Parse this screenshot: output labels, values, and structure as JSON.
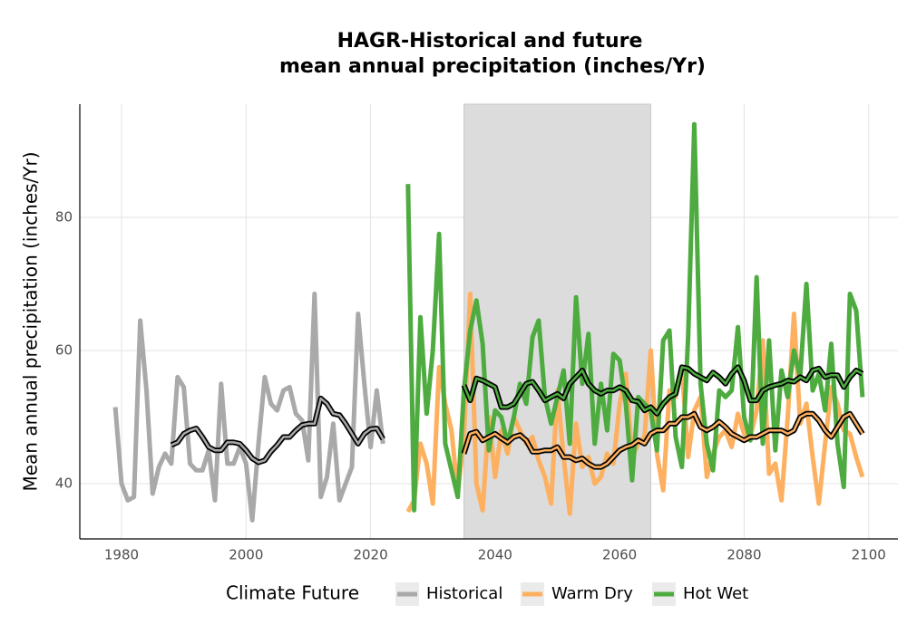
{
  "chart_data": {
    "type": "line",
    "title": [
      "HAGR-Historical and future",
      "mean annual precipitation (inches/Yr)"
    ],
    "y_label": "Mean annual precipitation (inches/Yr)",
    "legend_title": "Climate Future",
    "xlim": [
      1973.3,
      2104.7
    ],
    "ylim": [
      31.7,
      97
    ],
    "xticks": [
      1980,
      2000,
      2020,
      2040,
      2060,
      2080,
      2100
    ],
    "yticks": [
      40,
      60,
      80
    ],
    "grid": true,
    "shade": [
      2035,
      2065
    ],
    "series": [
      {
        "name": "Historical",
        "color": "#a9a9a9",
        "x": [
          1979,
          1980,
          1981,
          1982,
          1983,
          1984,
          1985,
          1986,
          1987,
          1988,
          1989,
          1990,
          1991,
          1992,
          1993,
          1994,
          1995,
          1996,
          1997,
          1998,
          1999,
          2000,
          2001,
          2002,
          2003,
          2004,
          2005,
          2006,
          2007,
          2008,
          2009,
          2010,
          2011,
          2012,
          2013,
          2014,
          2015,
          2016,
          2017,
          2018,
          2019,
          2020,
          2021,
          2022
        ],
        "values": [
          51.5,
          40,
          37.5,
          38,
          64.5,
          54,
          38.5,
          42.5,
          44.5,
          43,
          56,
          54.5,
          43,
          42,
          42,
          45,
          37.5,
          55,
          43,
          43,
          45.5,
          43,
          34.5,
          46,
          56,
          52,
          51,
          54,
          54.5,
          50.5,
          49.5,
          43.5,
          68.5,
          38,
          41,
          49,
          37.5,
          40,
          42.5,
          65.5,
          55,
          45.5,
          54,
          46
        ],
        "trend": {
          "x": [
            1988,
            1989,
            1990,
            1991,
            1992,
            1993,
            1994,
            1995,
            1996,
            1997,
            1998,
            1999,
            2000,
            2001,
            2002,
            2003,
            2004,
            2005,
            2006,
            2007,
            2008,
            2009,
            2010,
            2011,
            2012,
            2013,
            2014,
            2015,
            2016,
            2017,
            2018,
            2019,
            2020,
            2021,
            2022
          ],
          "values": [
            45.8,
            46.2,
            47.5,
            48,
            48.3,
            47,
            45.5,
            45,
            45,
            46.2,
            46.2,
            46,
            45,
            43.8,
            43.2,
            43.5,
            44.8,
            45.8,
            47,
            47,
            48,
            48.8,
            49,
            49,
            52.8,
            52,
            50.5,
            50.3,
            49,
            47.5,
            46,
            47.5,
            48.2,
            48.3,
            46.7
          ]
        }
      },
      {
        "name": "Warm Dry",
        "color": "#fdb060",
        "x": [
          2026,
          2027,
          2028,
          2029,
          2030,
          2031,
          2032,
          2033,
          2034,
          2035,
          2036,
          2037,
          2038,
          2039,
          2040,
          2041,
          2042,
          2043,
          2044,
          2045,
          2046,
          2047,
          2048,
          2049,
          2050,
          2051,
          2052,
          2053,
          2054,
          2055,
          2056,
          2057,
          2058,
          2059,
          2060,
          2061,
          2062,
          2063,
          2064,
          2065,
          2066,
          2067,
          2068,
          2069,
          2070,
          2071,
          2072,
          2073,
          2074,
          2075,
          2076,
          2077,
          2078,
          2079,
          2080,
          2081,
          2082,
          2083,
          2084,
          2085,
          2086,
          2087,
          2088,
          2089,
          2090,
          2091,
          2092,
          2093,
          2094,
          2095,
          2096,
          2097,
          2098,
          2099
        ],
        "values": [
          35.8,
          37.5,
          46,
          43,
          37,
          57.5,
          52,
          48,
          38.5,
          47,
          68.5,
          40,
          36,
          50,
          41,
          48,
          44.5,
          50,
          48,
          46,
          47,
          43.5,
          41,
          37,
          54,
          44,
          35.5,
          49,
          42.5,
          44,
          40,
          41,
          44.5,
          43,
          52,
          56.5,
          44,
          46,
          47,
          60,
          44.5,
          39,
          54,
          53,
          57.5,
          44,
          51,
          53,
          41,
          44.5,
          47,
          48,
          45.5,
          50.5,
          47.5,
          47,
          51,
          61.5,
          41.5,
          43,
          37.5,
          50,
          65.5,
          49,
          52,
          44,
          37,
          46,
          54.5,
          52,
          48,
          47.5,
          44,
          41
        ],
        "trend": {
          "x": [
            2035,
            2036,
            2037,
            2038,
            2039,
            2040,
            2041,
            2042,
            2043,
            2044,
            2045,
            2046,
            2047,
            2048,
            2049,
            2050,
            2051,
            2052,
            2053,
            2054,
            2055,
            2056,
            2057,
            2058,
            2059,
            2060,
            2061,
            2062,
            2063,
            2064,
            2065,
            2066,
            2067,
            2068,
            2069,
            2070,
            2071,
            2072,
            2073,
            2074,
            2075,
            2076,
            2077,
            2078,
            2079,
            2080,
            2081,
            2082,
            2083,
            2084,
            2085,
            2086,
            2087,
            2088,
            2089,
            2090,
            2091,
            2092,
            2093,
            2094,
            2095,
            2096,
            2097,
            2098,
            2099
          ],
          "values": [
            44.5,
            47.5,
            47.8,
            46.5,
            47,
            47.5,
            46.8,
            46.2,
            47,
            47.3,
            46.5,
            44.8,
            44.8,
            45,
            45,
            45.5,
            44,
            44,
            43.5,
            43.8,
            43,
            42.5,
            42.5,
            43,
            44,
            45,
            45.5,
            45.8,
            46.5,
            46,
            47.5,
            48,
            48,
            49,
            49,
            50,
            50,
            50.5,
            48.5,
            48,
            48.5,
            49.3,
            48.5,
            47.5,
            47,
            46.5,
            47,
            47,
            47.5,
            48,
            48,
            48,
            47.5,
            48,
            50,
            50.5,
            50.5,
            49.5,
            48,
            47,
            48.5,
            50,
            50.5,
            49,
            47.5
          ]
        }
      },
      {
        "name": "Hot Wet",
        "color": "#4dab3f",
        "x": [
          2026,
          2027,
          2028,
          2029,
          2030,
          2031,
          2032,
          2033,
          2034,
          2035,
          2036,
          2037,
          2038,
          2039,
          2040,
          2041,
          2042,
          2043,
          2044,
          2045,
          2046,
          2047,
          2048,
          2049,
          2050,
          2051,
          2052,
          2053,
          2054,
          2055,
          2056,
          2057,
          2058,
          2059,
          2060,
          2061,
          2062,
          2063,
          2064,
          2065,
          2066,
          2067,
          2068,
          2069,
          2070,
          2071,
          2072,
          2073,
          2074,
          2075,
          2076,
          2077,
          2078,
          2079,
          2080,
          2081,
          2082,
          2083,
          2084,
          2085,
          2086,
          2087,
          2088,
          2089,
          2090,
          2091,
          2092,
          2093,
          2094,
          2095,
          2096,
          2097,
          2098,
          2099
        ],
        "values": [
          85,
          36,
          65,
          50.5,
          60,
          77.5,
          46,
          42,
          38,
          54,
          63,
          67.5,
          61,
          45,
          51,
          50,
          46,
          50,
          55,
          52,
          62,
          64.5,
          53,
          49,
          53,
          57,
          46,
          68,
          55,
          62.5,
          46,
          55,
          48,
          59.5,
          58.5,
          52,
          40.5,
          53,
          52,
          51,
          45,
          61.5,
          63,
          47,
          42.5,
          62,
          94,
          55,
          46,
          42,
          54,
          53,
          54,
          63.5,
          50,
          46.5,
          71,
          46,
          61.5,
          45,
          57,
          53,
          60,
          56,
          70,
          54,
          56.5,
          51,
          61,
          46,
          39.5,
          68.5,
          66,
          53
        ],
        "trend": {
          "x": [
            2035,
            2036,
            2037,
            2038,
            2039,
            2040,
            2041,
            2042,
            2043,
            2044,
            2045,
            2046,
            2047,
            2048,
            2049,
            2050,
            2051,
            2052,
            2053,
            2054,
            2055,
            2056,
            2057,
            2058,
            2059,
            2060,
            2061,
            2062,
            2063,
            2064,
            2065,
            2066,
            2067,
            2068,
            2069,
            2070,
            2071,
            2072,
            2073,
            2074,
            2075,
            2076,
            2077,
            2078,
            2079,
            2080,
            2081,
            2082,
            2083,
            2084,
            2085,
            2086,
            2087,
            2088,
            2089,
            2090,
            2091,
            2092,
            2093,
            2094,
            2095,
            2096,
            2097,
            2098,
            2099
          ],
          "values": [
            54.8,
            52.5,
            55.8,
            55.5,
            55,
            54.5,
            51.5,
            51.5,
            52,
            53.5,
            55,
            55.3,
            54,
            52.5,
            53,
            53.5,
            52.8,
            55,
            56,
            57,
            55,
            54,
            53.5,
            54,
            54,
            54.5,
            54,
            52.5,
            52.3,
            51,
            51.5,
            50.5,
            52,
            53,
            53.5,
            57.5,
            57.3,
            56.5,
            56,
            55.5,
            56.7,
            56,
            55,
            56.5,
            57.5,
            55.5,
            52.5,
            52.5,
            54,
            54.5,
            54.8,
            55,
            55.5,
            55.3,
            56,
            55.5,
            57,
            57.3,
            56,
            56.3,
            56.3,
            54.5,
            56,
            57,
            56.5
          ]
        }
      }
    ]
  }
}
